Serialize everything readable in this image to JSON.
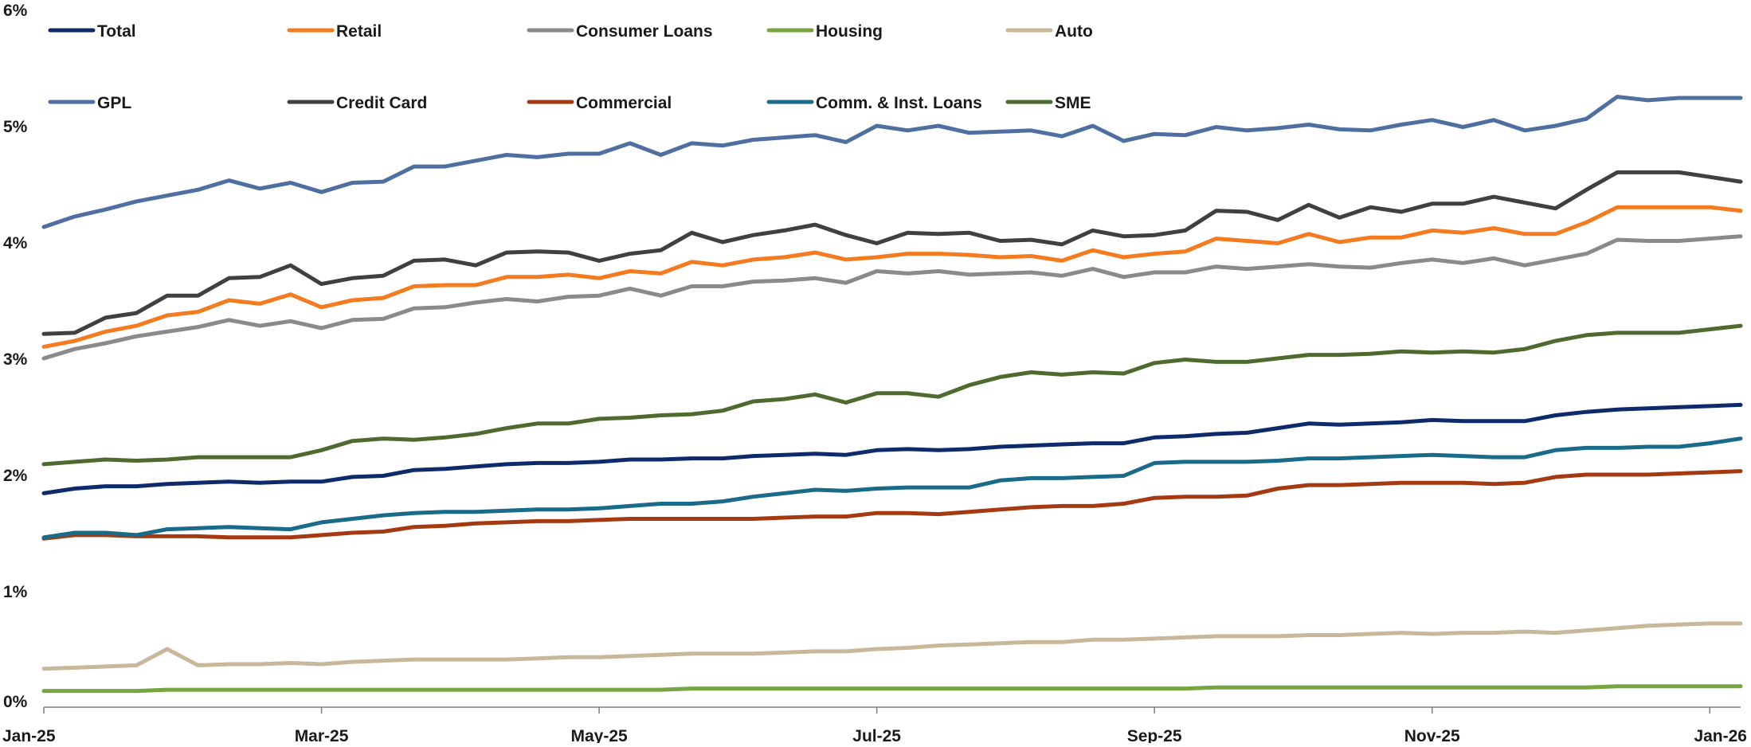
{
  "chart_data": {
    "type": "line",
    "title": "",
    "xlabel": "",
    "ylabel": "",
    "ylim": [
      0,
      6
    ],
    "y_ticks": [
      "0%",
      "1%",
      "2%",
      "3%",
      "4%",
      "5%",
      "6%"
    ],
    "x_ticks": [
      "Jan-25",
      "Mar-25",
      "May-25",
      "Jul-25",
      "Sep-25",
      "Nov-25",
      "Jan-26"
    ],
    "x_tick_index": [
      0,
      9,
      18,
      27,
      36,
      45,
      54
    ],
    "n_points": 56,
    "grid": false,
    "legend_position": "top-left",
    "series": [
      {
        "name": "Total",
        "color": "#0d2b6b",
        "values": [
          1.84,
          1.88,
          1.9,
          1.9,
          1.92,
          1.93,
          1.94,
          1.93,
          1.94,
          1.94,
          1.98,
          1.99,
          2.04,
          2.05,
          2.07,
          2.09,
          2.1,
          2.1,
          2.11,
          2.13,
          2.13,
          2.14,
          2.14,
          2.16,
          2.17,
          2.18,
          2.17,
          2.21,
          2.22,
          2.21,
          2.22,
          2.24,
          2.25,
          2.26,
          2.27,
          2.27,
          2.32,
          2.33,
          2.35,
          2.36,
          2.4,
          2.44,
          2.43,
          2.44,
          2.45,
          2.47,
          2.46,
          2.46,
          2.46,
          2.51,
          2.54,
          2.56,
          2.57,
          2.58,
          2.59,
          2.6
        ]
      },
      {
        "name": "Retail",
        "color": "#f47b20",
        "values": [
          3.1,
          3.15,
          3.23,
          3.28,
          3.37,
          3.4,
          3.5,
          3.47,
          3.55,
          3.44,
          3.5,
          3.52,
          3.62,
          3.63,
          3.63,
          3.7,
          3.7,
          3.72,
          3.69,
          3.75,
          3.73,
          3.83,
          3.8,
          3.85,
          3.87,
          3.91,
          3.85,
          3.87,
          3.9,
          3.9,
          3.89,
          3.87,
          3.88,
          3.84,
          3.93,
          3.87,
          3.9,
          3.92,
          4.03,
          4.01,
          3.99,
          4.07,
          4.0,
          4.04,
          4.04,
          4.1,
          4.08,
          4.12,
          4.07,
          4.07,
          4.17,
          4.3,
          4.3,
          4.3,
          4.3,
          4.27
        ]
      },
      {
        "name": "Consumer Loans",
        "color": "#8a8a8a",
        "values": [
          3.0,
          3.08,
          3.13,
          3.19,
          3.23,
          3.27,
          3.33,
          3.28,
          3.32,
          3.26,
          3.33,
          3.34,
          3.43,
          3.44,
          3.48,
          3.51,
          3.49,
          3.53,
          3.54,
          3.6,
          3.54,
          3.62,
          3.62,
          3.66,
          3.67,
          3.69,
          3.65,
          3.75,
          3.73,
          3.75,
          3.72,
          3.73,
          3.74,
          3.71,
          3.77,
          3.7,
          3.74,
          3.74,
          3.79,
          3.77,
          3.79,
          3.81,
          3.79,
          3.78,
          3.82,
          3.85,
          3.82,
          3.86,
          3.8,
          3.85,
          3.9,
          4.02,
          4.01,
          4.01,
          4.03,
          4.05
        ]
      },
      {
        "name": "Housing",
        "color": "#77a542",
        "values": [
          0.14,
          0.14,
          0.14,
          0.14,
          0.15,
          0.15,
          0.15,
          0.15,
          0.15,
          0.15,
          0.15,
          0.15,
          0.15,
          0.15,
          0.15,
          0.15,
          0.15,
          0.15,
          0.15,
          0.15,
          0.15,
          0.16,
          0.16,
          0.16,
          0.16,
          0.16,
          0.16,
          0.16,
          0.16,
          0.16,
          0.16,
          0.16,
          0.16,
          0.16,
          0.16,
          0.16,
          0.16,
          0.16,
          0.17,
          0.17,
          0.17,
          0.17,
          0.17,
          0.17,
          0.17,
          0.17,
          0.17,
          0.17,
          0.17,
          0.17,
          0.17,
          0.18,
          0.18,
          0.18,
          0.18,
          0.18
        ]
      },
      {
        "name": "Auto",
        "color": "#c8b79a",
        "values": [
          0.33,
          0.34,
          0.35,
          0.36,
          0.5,
          0.36,
          0.37,
          0.37,
          0.38,
          0.37,
          0.39,
          0.4,
          0.41,
          0.41,
          0.41,
          0.41,
          0.42,
          0.43,
          0.43,
          0.44,
          0.45,
          0.46,
          0.46,
          0.46,
          0.47,
          0.48,
          0.48,
          0.5,
          0.51,
          0.53,
          0.54,
          0.55,
          0.56,
          0.56,
          0.58,
          0.58,
          0.59,
          0.6,
          0.61,
          0.61,
          0.61,
          0.62,
          0.62,
          0.63,
          0.64,
          0.63,
          0.64,
          0.64,
          0.65,
          0.64,
          0.66,
          0.68,
          0.7,
          0.71,
          0.72,
          0.72
        ]
      },
      {
        "name": "GPL",
        "color": "#4f6fa0",
        "values": [
          4.13,
          4.22,
          4.28,
          4.35,
          4.4,
          4.45,
          4.53,
          4.46,
          4.51,
          4.43,
          4.51,
          4.52,
          4.65,
          4.65,
          4.7,
          4.75,
          4.73,
          4.76,
          4.76,
          4.85,
          4.75,
          4.85,
          4.83,
          4.88,
          4.9,
          4.92,
          4.86,
          5.0,
          4.96,
          5.0,
          4.94,
          4.95,
          4.96,
          4.91,
          5.0,
          4.87,
          4.93,
          4.92,
          4.99,
          4.96,
          4.98,
          5.01,
          4.97,
          4.96,
          5.01,
          5.05,
          4.99,
          5.05,
          4.96,
          5.0,
          5.06,
          5.25,
          5.22,
          5.24,
          5.24,
          5.24
        ]
      },
      {
        "name": "Credit Card",
        "color": "#404040",
        "values": [
          3.21,
          3.22,
          3.35,
          3.39,
          3.54,
          3.54,
          3.69,
          3.7,
          3.8,
          3.64,
          3.69,
          3.71,
          3.84,
          3.85,
          3.8,
          3.91,
          3.92,
          3.91,
          3.84,
          3.9,
          3.93,
          4.08,
          4.0,
          4.06,
          4.1,
          4.15,
          4.06,
          3.99,
          4.08,
          4.07,
          4.08,
          4.01,
          4.02,
          3.98,
          4.1,
          4.05,
          4.06,
          4.1,
          4.27,
          4.26,
          4.19,
          4.32,
          4.21,
          4.3,
          4.26,
          4.33,
          4.33,
          4.39,
          4.34,
          4.29,
          4.45,
          4.6,
          4.6,
          4.6,
          4.56,
          4.52
        ]
      },
      {
        "name": "Commercial",
        "color": "#a53a12",
        "values": [
          1.45,
          1.48,
          1.48,
          1.47,
          1.47,
          1.47,
          1.46,
          1.46,
          1.46,
          1.48,
          1.5,
          1.51,
          1.55,
          1.56,
          1.58,
          1.59,
          1.6,
          1.6,
          1.61,
          1.62,
          1.62,
          1.62,
          1.62,
          1.62,
          1.63,
          1.64,
          1.64,
          1.67,
          1.67,
          1.66,
          1.68,
          1.7,
          1.72,
          1.73,
          1.73,
          1.75,
          1.8,
          1.81,
          1.81,
          1.82,
          1.88,
          1.91,
          1.91,
          1.92,
          1.93,
          1.93,
          1.93,
          1.92,
          1.93,
          1.98,
          2.0,
          2.0,
          2.0,
          2.01,
          2.02,
          2.03
        ]
      },
      {
        "name": "Comm. & Inst. Loans",
        "color": "#1a6a8a",
        "values": [
          1.46,
          1.5,
          1.5,
          1.48,
          1.53,
          1.54,
          1.55,
          1.54,
          1.53,
          1.59,
          1.62,
          1.65,
          1.67,
          1.68,
          1.68,
          1.69,
          1.7,
          1.7,
          1.71,
          1.73,
          1.75,
          1.75,
          1.77,
          1.81,
          1.84,
          1.87,
          1.86,
          1.88,
          1.89,
          1.89,
          1.89,
          1.95,
          1.97,
          1.97,
          1.98,
          1.99,
          2.1,
          2.11,
          2.11,
          2.11,
          2.12,
          2.14,
          2.14,
          2.15,
          2.16,
          2.17,
          2.16,
          2.15,
          2.15,
          2.21,
          2.23,
          2.23,
          2.24,
          2.24,
          2.27,
          2.31
        ]
      },
      {
        "name": "SME",
        "color": "#4e6a2e",
        "values": [
          2.09,
          2.11,
          2.13,
          2.12,
          2.13,
          2.15,
          2.15,
          2.15,
          2.15,
          2.21,
          2.29,
          2.31,
          2.3,
          2.32,
          2.35,
          2.4,
          2.44,
          2.44,
          2.48,
          2.49,
          2.51,
          2.52,
          2.55,
          2.63,
          2.65,
          2.69,
          2.62,
          2.7,
          2.7,
          2.67,
          2.77,
          2.84,
          2.88,
          2.86,
          2.88,
          2.87,
          2.96,
          2.99,
          2.97,
          2.97,
          3.0,
          3.03,
          3.03,
          3.04,
          3.06,
          3.05,
          3.06,
          3.05,
          3.08,
          3.15,
          3.2,
          3.22,
          3.22,
          3.22,
          3.25,
          3.28
        ]
      }
    ],
    "legend_rows": [
      [
        "Total",
        "Retail",
        "Consumer Loans",
        "Housing",
        "Auto"
      ],
      [
        "GPL",
        "Credit Card",
        "Commercial",
        "Comm. & Inst. Loans",
        "SME"
      ]
    ]
  }
}
